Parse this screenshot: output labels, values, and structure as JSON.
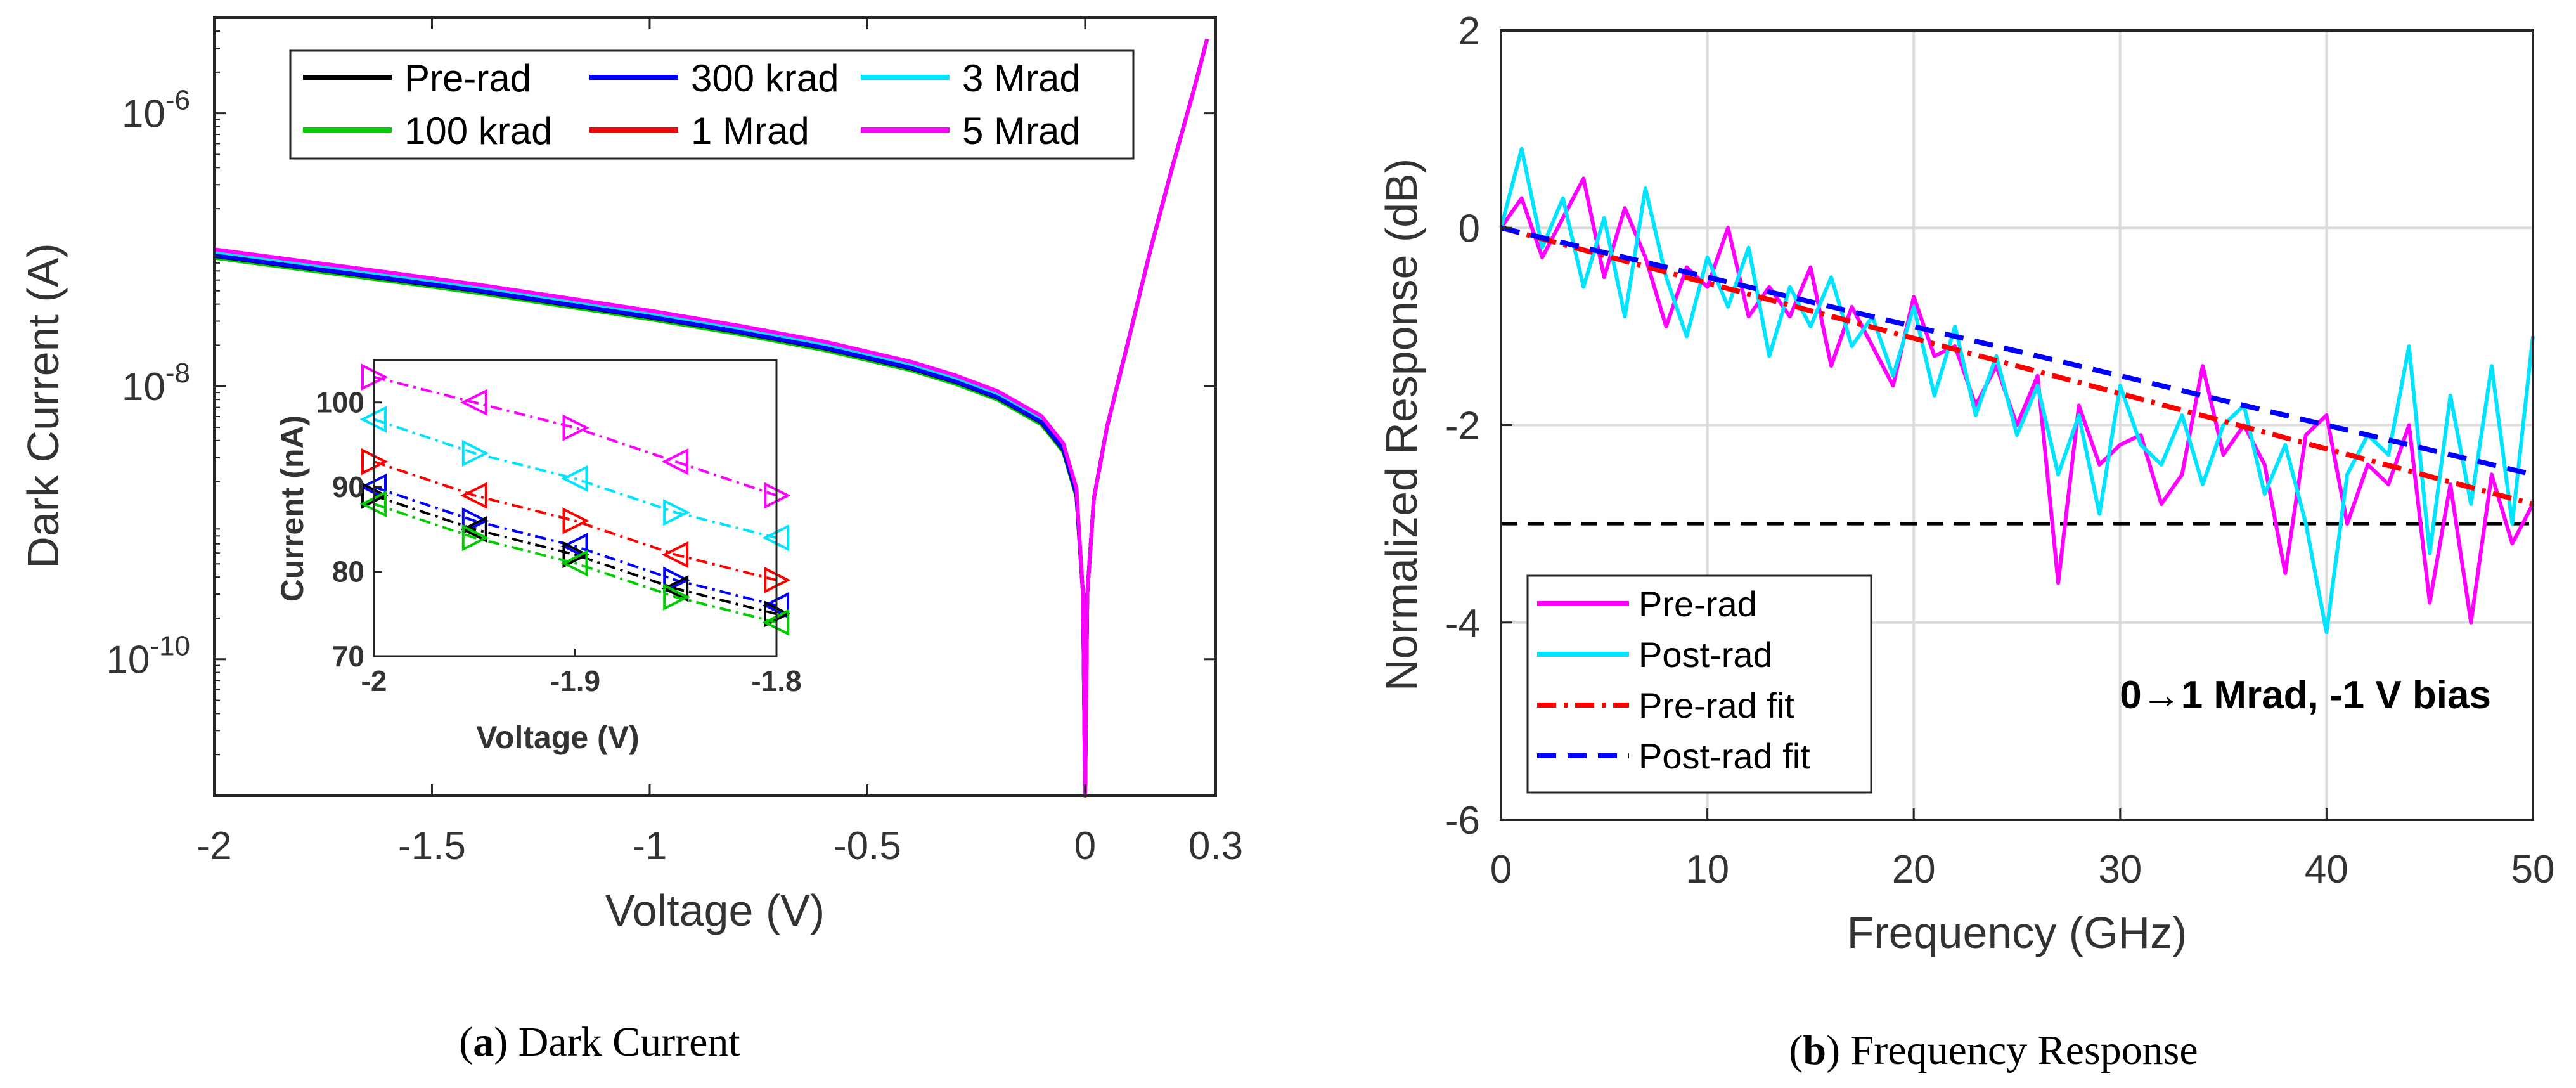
{
  "chart_data": [
    {
      "id": "a",
      "type": "line",
      "title": "",
      "xlabel": "Voltage (V)",
      "ylabel": "Dark Current (A)",
      "yscale": "log",
      "xlim": [
        -2,
        0.3
      ],
      "ylim_log10": [
        -11,
        -5.3
      ],
      "xticks": [
        -2,
        -1.5,
        -1,
        -0.5,
        0,
        0.3
      ],
      "xtick_labels": [
        "-2",
        "-1.5",
        "-1",
        "-0.5",
        "0",
        "0.3"
      ],
      "yticks_log10": [
        -10,
        -8,
        -6
      ],
      "ytick_labels": [
        {
          "base": "10",
          "exp": "-10"
        },
        {
          "base": "10",
          "exp": "-8"
        },
        {
          "base": "10",
          "exp": "-6"
        }
      ],
      "legend": {
        "placement": "top",
        "columns": 3
      },
      "series": [
        {
          "name": "Pre-rad",
          "color": "#000000",
          "scale": 1.0
        },
        {
          "name": "300 krad",
          "color": "#0000ff",
          "scale": 1.01
        },
        {
          "name": "3 Mrad",
          "color": "#00e5ff",
          "scale": 1.08
        },
        {
          "name": "100 krad",
          "color": "#00cc00",
          "scale": 0.97
        },
        {
          "name": "1 Mrad",
          "color": "#ff0000",
          "scale": 1.04
        },
        {
          "name": "5 Mrad",
          "color": "#ff00ff",
          "scale": 1.12
        }
      ],
      "curve_samples": {
        "voltage": [
          -2,
          -1.8,
          -1.6,
          -1.4,
          -1.2,
          -1.0,
          -0.8,
          -0.6,
          -0.4,
          -0.3,
          -0.2,
          -0.1,
          -0.05,
          -0.02,
          -0.005,
          0
        ],
        "current": [
          9e-08,
          7.4e-08,
          6.1e-08,
          5e-08,
          4e-08,
          3.2e-08,
          2.5e-08,
          1.9e-08,
          1.35e-08,
          1.08e-08,
          8.2e-09,
          5.4e-09,
          3.4e-09,
          1.6e-09,
          3e-10,
          1e-11
        ],
        "forward_voltage": [
          0,
          0.005,
          0.02,
          0.05,
          0.1,
          0.15,
          0.2,
          0.25,
          0.28
        ],
        "forward_current": [
          1e-11,
          3e-10,
          1.5e-09,
          5e-09,
          2.2e-08,
          1e-07,
          4e-07,
          1.5e-06,
          3.5e-06
        ]
      },
      "inset": {
        "xlabel": "Voltage (V)",
        "ylabel": "Current (nA)",
        "xlim": [
          -2,
          -1.8
        ],
        "ylim": [
          70,
          105
        ],
        "xticks": [
          -2,
          -1.9,
          -1.8
        ],
        "xtick_labels": [
          "-2",
          "-1.9",
          "-1.8"
        ],
        "yticks": [
          70,
          80,
          90,
          100
        ],
        "ytick_labels": [
          "70",
          "80",
          "90",
          "100"
        ],
        "x_points": [
          -2,
          -1.95,
          -1.9,
          -1.85,
          -1.8
        ],
        "series": [
          {
            "name": "5 Mrad",
            "color": "#ff00ff",
            "values": [
              103,
              100,
              97,
              93,
              89
            ]
          },
          {
            "name": "3 Mrad",
            "color": "#00e5ff",
            "values": [
              98,
              94,
              91,
              87,
              84
            ]
          },
          {
            "name": "1 Mrad",
            "color": "#ff0000",
            "values": [
              93,
              89,
              86,
              82,
              79
            ]
          },
          {
            "name": "300 krad",
            "color": "#0000ff",
            "values": [
              90,
              86,
              83,
              79,
              76
            ]
          },
          {
            "name": "Pre-rad",
            "color": "#000000",
            "values": [
              89,
              85,
              82,
              78,
              75
            ]
          },
          {
            "name": "100 krad",
            "color": "#00cc00",
            "values": [
              88,
              84,
              81,
              77,
              74
            ]
          }
        ]
      },
      "caption": {
        "letter": "a",
        "text": " Dark Current"
      }
    },
    {
      "id": "b",
      "type": "line",
      "title": "",
      "xlabel": "Frequency (GHz)",
      "ylabel": "Normalized Response (dB)",
      "xlim": [
        0,
        50
      ],
      "ylim": [
        -6,
        2
      ],
      "xticks": [
        0,
        10,
        20,
        30,
        40,
        50
      ],
      "xtick_labels": [
        "0",
        "10",
        "20",
        "30",
        "40",
        "50"
      ],
      "yticks": [
        -6,
        -4,
        -2,
        0,
        2
      ],
      "ytick_labels": [
        "-6",
        "-4",
        "-2",
        "0",
        "2"
      ],
      "grid": true,
      "threshold": {
        "y": -3,
        "color": "#000000",
        "style": "dashed"
      },
      "legend": {
        "placement": "bottom-left"
      },
      "annotation": {
        "text": "0→1 Mrad, -1 V bias"
      },
      "series": [
        {
          "name": "Pre-rad",
          "color": "#ff00ff",
          "style": "solid",
          "x": [
            0,
            1,
            2,
            3,
            4,
            5,
            6,
            7,
            8,
            9,
            10,
            11,
            12,
            13,
            14,
            15,
            16,
            17,
            18,
            19,
            20,
            21,
            22,
            23,
            24,
            25,
            26,
            27,
            28,
            29,
            30,
            31,
            32,
            33,
            34,
            35,
            36,
            37,
            38,
            39,
            40,
            41,
            42,
            43,
            44,
            45,
            46,
            47,
            48,
            49,
            50
          ],
          "values": [
            0.0,
            0.3,
            -0.3,
            0.1,
            0.5,
            -0.5,
            0.2,
            -0.3,
            -1.0,
            -0.4,
            -0.6,
            0.0,
            -0.9,
            -0.6,
            -0.9,
            -0.4,
            -1.4,
            -0.8,
            -1.2,
            -1.6,
            -0.7,
            -1.3,
            -1.2,
            -1.8,
            -1.4,
            -2.0,
            -1.5,
            -3.6,
            -1.8,
            -2.4,
            -2.2,
            -2.1,
            -2.8,
            -2.5,
            -1.4,
            -2.3,
            -2.0,
            -2.4,
            -3.5,
            -2.1,
            -1.9,
            -3.0,
            -2.4,
            -2.6,
            -2.0,
            -3.8,
            -2.6,
            -4.0,
            -2.5,
            -3.2,
            -2.8
          ]
        },
        {
          "name": "Post-rad",
          "color": "#00e5ff",
          "style": "solid",
          "x": [
            0,
            1,
            2,
            3,
            4,
            5,
            6,
            7,
            8,
            9,
            10,
            11,
            12,
            13,
            14,
            15,
            16,
            17,
            18,
            19,
            20,
            21,
            22,
            23,
            24,
            25,
            26,
            27,
            28,
            29,
            30,
            31,
            32,
            33,
            34,
            35,
            36,
            37,
            38,
            39,
            40,
            41,
            42,
            43,
            44,
            45,
            46,
            47,
            48,
            49,
            50
          ],
          "values": [
            0.0,
            0.8,
            -0.2,
            0.3,
            -0.6,
            0.1,
            -0.9,
            0.4,
            -0.5,
            -1.1,
            -0.3,
            -0.8,
            -0.2,
            -1.3,
            -0.6,
            -1.0,
            -0.5,
            -1.2,
            -0.9,
            -1.5,
            -0.8,
            -1.7,
            -1.0,
            -1.9,
            -1.3,
            -2.1,
            -1.6,
            -2.5,
            -1.9,
            -2.9,
            -1.6,
            -2.2,
            -2.4,
            -1.9,
            -2.6,
            -2.0,
            -1.8,
            -2.7,
            -2.2,
            -3.0,
            -4.1,
            -2.5,
            -2.1,
            -2.3,
            -1.2,
            -3.3,
            -1.7,
            -2.8,
            -1.4,
            -3.0,
            -1.1
          ]
        },
        {
          "name": "Pre-rad fit",
          "color": "#ff0000",
          "style": "dash-dot",
          "x": [
            0,
            50
          ],
          "values": [
            0.0,
            -2.8
          ]
        },
        {
          "name": "Post-rad fit",
          "color": "#0000ff",
          "style": "dashed",
          "x": [
            0,
            50
          ],
          "values": [
            0.0,
            -2.5
          ]
        }
      ],
      "caption": {
        "letter": "b",
        "text": " Frequency Response"
      }
    }
  ]
}
